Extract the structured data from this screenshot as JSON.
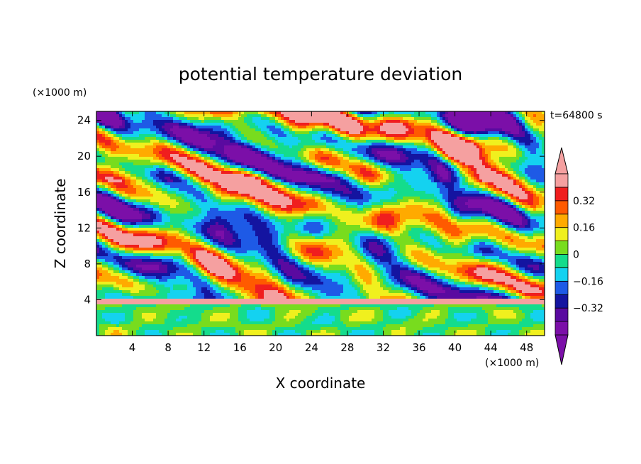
{
  "chart_data": {
    "type": "heatmap",
    "title": "potential temperature deviation",
    "xlabel": "X coordinate",
    "ylabel": "Z coordinate",
    "x_unit": "(×1000 m)",
    "y_unit": "(×1000 m)",
    "time_label": "t=64800 s",
    "xlim": [
      0,
      50
    ],
    "ylim": [
      0,
      25
    ],
    "x_ticks": [
      4,
      8,
      12,
      16,
      20,
      24,
      28,
      32,
      36,
      40,
      44,
      48
    ],
    "y_ticks": [
      4,
      8,
      12,
      16,
      20,
      24
    ],
    "legend_position": "right",
    "colorbar": {
      "levels": [
        -0.4,
        -0.32,
        -0.24,
        -0.16,
        -0.08,
        0,
        0.08,
        0.16,
        0.24,
        0.32,
        0.4
      ],
      "labels": [
        {
          "value": 0.32,
          "text": "0.32"
        },
        {
          "value": 0.16,
          "text": "0.16"
        },
        {
          "value": 0,
          "text": "0"
        },
        {
          "value": -0.16,
          "text": "−0.16"
        },
        {
          "value": -0.32,
          "text": "−0.32"
        }
      ],
      "colors": [
        "#7b0fa8",
        "#5a0aa0",
        "#1414a0",
        "#1e5ae6",
        "#14d2f0",
        "#14dc8c",
        "#78dc1e",
        "#f0f01e",
        "#ffaa00",
        "#ff5a00",
        "#f01e1e",
        "#f5a0a0"
      ],
      "under_color": "#7b0fa8",
      "over_color": "#f5a0a0"
    }
  }
}
